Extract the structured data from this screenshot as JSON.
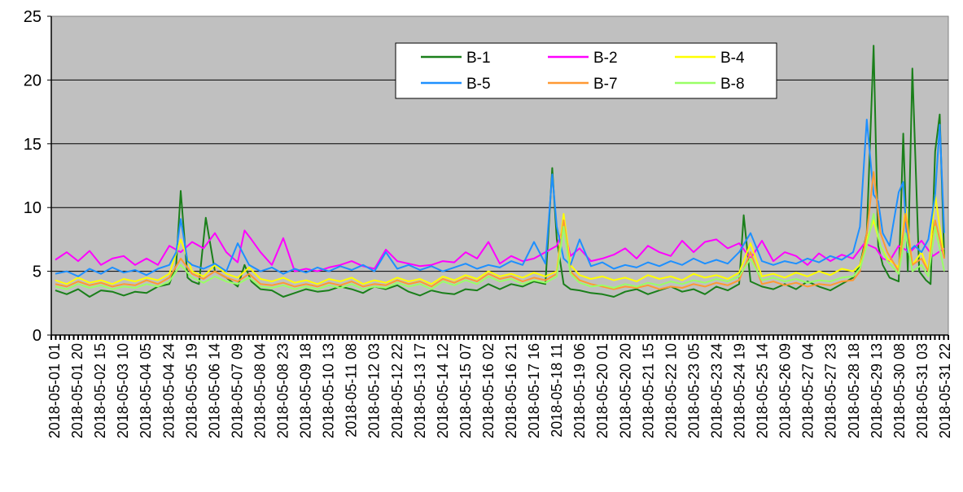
{
  "chart_data": {
    "type": "line",
    "title": "",
    "xlabel": "",
    "ylabel": "",
    "ylim": [
      0,
      25
    ],
    "yticks": [
      0,
      5,
      10,
      15,
      20,
      25
    ],
    "grid": "horizontal major gridlines",
    "legend_position": "top-right",
    "background_color": "#c0c0c0",
    "x_tick_labels": [
      "2018-05-01 01",
      "2018-05-01 20",
      "2018-05-02 15",
      "2018-05-03 10",
      "2018-05-04 05",
      "2018-05-04 24",
      "2018-05-05 19",
      "2018-05-06 14",
      "2018-05-07 09",
      "2018-05-08 04",
      "2018-05-08 23",
      "2018-05-09 18",
      "2018-05-10 13",
      "2018-05-11 08",
      "2018-05-12 03",
      "2018-05-12 22",
      "2018-05-13 17",
      "2018-05-14 12",
      "2018-05-15 07",
      "2018-05-16 02",
      "2018-05-16 21",
      "2018-05-17 16",
      "2018-05-18 11",
      "2018-05-19 06",
      "2018-05-20 01",
      "2018-05-20 20",
      "2018-05-21 15",
      "2018-05-22 10",
      "2018-05-23 05",
      "2018-05-23 24",
      "2018-05-24 19",
      "2018-05-25 14",
      "2018-05-26 09",
      "2018-05-27 04",
      "2018-05-27 23",
      "2018-05-28 18",
      "2018-05-29 13",
      "2018-05-30 08",
      "2018-05-31 03",
      "2018-05-31 22"
    ],
    "x_domain": [
      0,
      39
    ],
    "series": [
      {
        "name": "B-1",
        "color": "#1a7f1a",
        "x": [
          0,
          0.5,
          1,
          1.5,
          2,
          2.5,
          3,
          3.5,
          4,
          4.5,
          5,
          5.3,
          5.5,
          5.8,
          6,
          6.3,
          6.6,
          7,
          7.5,
          8,
          8.3,
          8.6,
          9,
          9.5,
          10,
          10.5,
          11,
          11.5,
          12,
          12.5,
          13,
          13.5,
          14,
          14.5,
          15,
          15.5,
          16,
          16.5,
          17,
          17.5,
          18,
          18.5,
          19,
          19.5,
          20,
          20.5,
          21,
          21.5,
          21.8,
          22,
          22.3,
          22.6,
          23,
          23.5,
          24,
          24.5,
          25,
          25.5,
          26,
          26.5,
          27,
          27.5,
          28,
          28.5,
          29,
          29.5,
          30,
          30.2,
          30.5,
          31,
          31.5,
          32,
          32.5,
          33,
          33.5,
          34,
          34.5,
          35,
          35.3,
          35.6,
          35.9,
          36.1,
          36.3,
          36.6,
          37,
          37.2,
          37.4,
          37.6,
          37.9,
          38.2,
          38.4,
          38.6,
          38.8,
          39
        ],
        "values": [
          3.5,
          3.2,
          3.6,
          3.0,
          3.5,
          3.4,
          3.1,
          3.4,
          3.3,
          3.8,
          4.0,
          5.5,
          11.3,
          4.5,
          4.2,
          4.0,
          9.2,
          5.0,
          4.5,
          3.8,
          5.5,
          4.2,
          3.6,
          3.5,
          3.0,
          3.3,
          3.6,
          3.4,
          3.5,
          3.8,
          3.6,
          3.3,
          3.8,
          3.6,
          3.9,
          3.4,
          3.1,
          3.5,
          3.3,
          3.2,
          3.6,
          3.5,
          4.0,
          3.6,
          4.0,
          3.8,
          4.2,
          4.0,
          13.1,
          7.5,
          4.0,
          3.6,
          3.5,
          3.3,
          3.2,
          3.0,
          3.4,
          3.6,
          3.2,
          3.5,
          3.8,
          3.4,
          3.6,
          3.2,
          3.8,
          3.5,
          4.0,
          9.4,
          4.2,
          3.8,
          3.6,
          4.0,
          3.6,
          4.2,
          3.8,
          3.5,
          4.0,
          4.5,
          5.5,
          8.0,
          22.7,
          7.0,
          5.5,
          4.5,
          4.2,
          15.8,
          5.0,
          20.9,
          5.0,
          4.3,
          4.0,
          14.4,
          17.3,
          6.0
        ]
      },
      {
        "name": "B-2",
        "color": "#ff00ff",
        "x": [
          0,
          0.5,
          1,
          1.5,
          2,
          2.5,
          3,
          3.5,
          4,
          4.5,
          5,
          5.5,
          6,
          6.5,
          7,
          7.5,
          8,
          8.3,
          8.6,
          9,
          9.5,
          10,
          10.5,
          11,
          11.5,
          12,
          12.5,
          13,
          13.5,
          14,
          14.5,
          15,
          15.5,
          16,
          16.5,
          17,
          17.5,
          18,
          18.5,
          19,
          19.5,
          20,
          20.5,
          21,
          21.5,
          22,
          22.3,
          22.6,
          23,
          23.5,
          24,
          24.5,
          25,
          25.5,
          26,
          26.5,
          27,
          27.5,
          28,
          28.5,
          29,
          29.5,
          30,
          30.5,
          31,
          31.5,
          32,
          32.5,
          33,
          33.5,
          34,
          34.5,
          35,
          35.5,
          36,
          36.3,
          36.6,
          37,
          37.5,
          38,
          38.5,
          39
        ],
        "values": [
          5.9,
          6.5,
          5.8,
          6.6,
          5.5,
          6.0,
          6.2,
          5.5,
          6.0,
          5.5,
          7.0,
          6.5,
          7.3,
          6.8,
          8.0,
          6.5,
          5.7,
          8.2,
          7.5,
          6.5,
          5.5,
          7.6,
          5.0,
          5.2,
          5.0,
          5.3,
          5.5,
          5.8,
          5.4,
          5.2,
          6.7,
          5.8,
          5.6,
          5.4,
          5.5,
          5.8,
          5.7,
          6.5,
          6.0,
          7.3,
          5.6,
          6.2,
          5.8,
          6.0,
          6.5,
          7.0,
          8.5,
          6.2,
          6.8,
          5.8,
          6.0,
          6.3,
          6.8,
          6.0,
          7.0,
          6.5,
          6.2,
          7.4,
          6.5,
          7.3,
          7.5,
          6.8,
          7.2,
          6.0,
          7.4,
          5.8,
          6.5,
          6.2,
          5.5,
          6.4,
          5.8,
          6.3,
          6.0,
          7.2,
          6.8,
          6.0,
          5.8,
          7.0,
          6.5,
          7.4,
          6.2,
          6.8
        ]
      },
      {
        "name": "B-4",
        "color": "#ffff00",
        "x": [
          0,
          0.5,
          1,
          1.5,
          2,
          2.5,
          3,
          3.5,
          4,
          4.5,
          5,
          5.5,
          6,
          6.5,
          7,
          7.5,
          8,
          8.5,
          9,
          9.5,
          10,
          10.5,
          11,
          11.5,
          12,
          12.5,
          13,
          13.5,
          14,
          14.5,
          15,
          15.5,
          16,
          16.5,
          17,
          17.5,
          18,
          18.5,
          19,
          19.5,
          20,
          20.5,
          21,
          21.5,
          22,
          22.3,
          22.6,
          23,
          23.5,
          24,
          24.5,
          25,
          25.5,
          26,
          26.5,
          27,
          27.5,
          28,
          28.5,
          29,
          29.5,
          30,
          30.5,
          31,
          31.5,
          32,
          32.5,
          33,
          33.5,
          34,
          34.5,
          35,
          35.3,
          35.6,
          35.9,
          36.2,
          36.5,
          37,
          37.3,
          37.6,
          38,
          38.3,
          38.6,
          39
        ],
        "values": [
          4.3,
          4.0,
          4.5,
          4.1,
          4.3,
          4.0,
          4.4,
          4.2,
          4.5,
          4.3,
          4.8,
          7.5,
          5.0,
          4.6,
          5.5,
          4.8,
          4.5,
          5.3,
          4.4,
          4.2,
          4.5,
          4.1,
          4.3,
          4.0,
          4.4,
          4.2,
          4.5,
          4.0,
          4.3,
          4.1,
          4.5,
          4.2,
          4.4,
          4.0,
          4.6,
          4.3,
          4.7,
          4.4,
          5.0,
          4.6,
          4.8,
          4.5,
          4.9,
          4.6,
          5.0,
          9.5,
          5.5,
          4.7,
          4.4,
          4.6,
          4.3,
          4.5,
          4.2,
          4.7,
          4.4,
          4.6,
          4.3,
          4.8,
          4.5,
          4.7,
          4.4,
          4.9,
          7.2,
          4.6,
          4.8,
          4.5,
          4.9,
          4.6,
          5.0,
          4.7,
          5.2,
          5.0,
          5.5,
          7.5,
          9.0,
          7.0,
          6.0,
          5.3,
          10.0,
          5.5,
          6.5,
          5.0,
          11.0,
          6.0
        ]
      },
      {
        "name": "B-5",
        "color": "#1e90ff",
        "x": [
          0,
          0.5,
          1,
          1.5,
          2,
          2.5,
          3,
          3.5,
          4,
          4.5,
          5,
          5.3,
          5.5,
          5.8,
          6,
          6.5,
          7,
          7.5,
          8,
          8.5,
          9,
          9.5,
          10,
          10.5,
          11,
          11.5,
          12,
          12.5,
          13,
          13.5,
          14,
          14.5,
          15,
          15.5,
          16,
          16.5,
          17,
          17.5,
          18,
          18.5,
          19,
          19.5,
          20,
          20.5,
          21,
          21.5,
          21.8,
          22,
          22.3,
          22.6,
          23,
          23.5,
          24,
          24.5,
          25,
          25.5,
          26,
          26.5,
          27,
          27.5,
          28,
          28.5,
          29,
          29.5,
          30,
          30.5,
          31,
          31.5,
          32,
          32.5,
          33,
          33.5,
          34,
          34.5,
          35,
          35.3,
          35.6,
          35.9,
          36.1,
          36.3,
          36.6,
          37,
          37.2,
          37.4,
          37.7,
          38,
          38.3,
          38.6,
          38.8,
          39
        ],
        "values": [
          4.8,
          5.0,
          4.6,
          5.2,
          4.8,
          5.3,
          4.9,
          5.1,
          4.7,
          5.2,
          5.5,
          6.5,
          9.1,
          5.8,
          5.5,
          5.2,
          5.6,
          5.0,
          7.2,
          5.5,
          5.0,
          5.3,
          4.8,
          5.2,
          4.9,
          5.3,
          5.0,
          5.4,
          5.1,
          5.5,
          5.0,
          6.5,
          5.2,
          5.5,
          5.1,
          5.4,
          5.0,
          5.3,
          5.6,
          5.2,
          5.5,
          5.3,
          5.8,
          5.5,
          7.3,
          5.6,
          12.6,
          8.5,
          6.0,
          5.5,
          7.5,
          5.4,
          5.7,
          5.2,
          5.5,
          5.3,
          5.7,
          5.4,
          5.8,
          5.5,
          6.0,
          5.6,
          5.9,
          5.6,
          6.5,
          8.0,
          5.8,
          5.5,
          5.8,
          5.6,
          6.0,
          5.7,
          6.2,
          5.9,
          6.5,
          8.5,
          16.9,
          11.0,
          10.5,
          8.0,
          7.0,
          11.2,
          12.0,
          6.5,
          7.0,
          6.5,
          7.5,
          11.0,
          16.5,
          8.0
        ]
      },
      {
        "name": "B-7",
        "color": "#ff9933",
        "x": [
          0,
          0.5,
          1,
          1.5,
          2,
          2.5,
          3,
          3.5,
          4,
          4.5,
          5,
          5.5,
          6,
          6.5,
          7,
          7.5,
          8,
          8.5,
          9,
          9.5,
          10,
          10.5,
          11,
          11.5,
          12,
          12.5,
          13,
          13.5,
          14,
          14.5,
          15,
          15.5,
          16,
          16.5,
          17,
          17.5,
          18,
          18.5,
          19,
          19.5,
          20,
          20.5,
          21,
          21.5,
          22,
          22.3,
          22.6,
          23,
          23.5,
          24,
          24.5,
          25,
          25.5,
          26,
          26.5,
          27,
          27.5,
          28,
          28.5,
          29,
          29.5,
          30,
          30.5,
          31,
          31.5,
          32,
          32.5,
          33,
          33.5,
          34,
          34.5,
          35,
          35.3,
          35.6,
          35.9,
          36.2,
          36.5,
          37,
          37.3,
          37.6,
          38,
          38.3,
          38.6,
          39
        ],
        "values": [
          4.0,
          3.8,
          4.2,
          3.9,
          4.1,
          3.8,
          4.0,
          3.9,
          4.3,
          4.0,
          4.5,
          6.0,
          4.8,
          4.4,
          5.0,
          4.5,
          4.2,
          4.8,
          4.0,
          3.9,
          4.1,
          3.8,
          4.0,
          3.8,
          4.1,
          3.9,
          4.2,
          3.8,
          4.0,
          3.9,
          4.3,
          4.0,
          4.2,
          3.8,
          4.4,
          4.1,
          4.5,
          4.2,
          4.8,
          4.4,
          4.6,
          4.2,
          4.5,
          4.3,
          4.8,
          9.0,
          5.0,
          4.3,
          4.0,
          3.8,
          3.6,
          3.8,
          3.7,
          3.9,
          3.6,
          3.8,
          3.7,
          4.0,
          3.8,
          4.1,
          3.9,
          4.3,
          6.5,
          4.0,
          4.2,
          3.9,
          4.1,
          3.8,
          4.0,
          3.9,
          4.2,
          4.3,
          5.0,
          8.0,
          12.8,
          8.0,
          6.5,
          5.0,
          9.5,
          5.5,
          6.0,
          5.0,
          9.0,
          6.0
        ]
      },
      {
        "name": "B-8",
        "color": "#99ff66",
        "x": [
          0,
          0.5,
          1,
          1.5,
          2,
          2.5,
          3,
          3.5,
          4,
          4.5,
          5,
          5.5,
          6,
          6.5,
          7,
          7.5,
          8,
          8.5,
          9,
          9.5,
          10,
          10.5,
          11,
          11.5,
          12,
          12.5,
          13,
          13.5,
          14,
          14.5,
          15,
          15.5,
          16,
          16.5,
          17,
          17.5,
          18,
          18.5,
          19,
          19.5,
          20,
          20.5,
          21,
          21.5,
          22,
          22.3,
          22.6,
          23,
          23.5,
          24,
          24.5,
          25,
          25.5,
          26,
          26.5,
          27,
          27.5,
          28,
          28.5,
          29,
          29.5,
          30,
          30.5,
          31,
          31.5,
          32,
          32.5,
          33,
          33.5,
          34,
          34.5,
          35,
          35.3,
          35.6,
          35.9,
          36.2,
          36.5,
          37,
          37.3,
          37.6,
          38,
          38.3,
          38.6,
          39
        ],
        "values": [
          3.8,
          3.6,
          4.0,
          3.7,
          3.9,
          3.6,
          3.8,
          3.7,
          4.0,
          3.8,
          4.2,
          5.5,
          4.5,
          4.1,
          4.6,
          4.2,
          4.0,
          4.5,
          3.8,
          3.7,
          3.9,
          3.6,
          3.8,
          3.6,
          3.9,
          3.7,
          4.0,
          3.6,
          3.8,
          3.7,
          4.1,
          3.8,
          4.0,
          3.6,
          4.2,
          3.9,
          4.3,
          4.0,
          4.6,
          4.2,
          4.4,
          4.0,
          4.3,
          4.1,
          4.6,
          8.5,
          4.8,
          4.1,
          3.8,
          3.9,
          3.7,
          4.0,
          3.8,
          4.1,
          3.9,
          4.2,
          4.0,
          4.3,
          4.1,
          4.4,
          4.2,
          4.6,
          6.0,
          4.3,
          4.5,
          4.2,
          4.4,
          4.1,
          4.3,
          4.2,
          4.5,
          4.6,
          5.2,
          7.0,
          9.5,
          7.0,
          5.8,
          4.8,
          8.0,
          5.0,
          5.5,
          4.6,
          8.5,
          5.0
        ]
      }
    ]
  }
}
